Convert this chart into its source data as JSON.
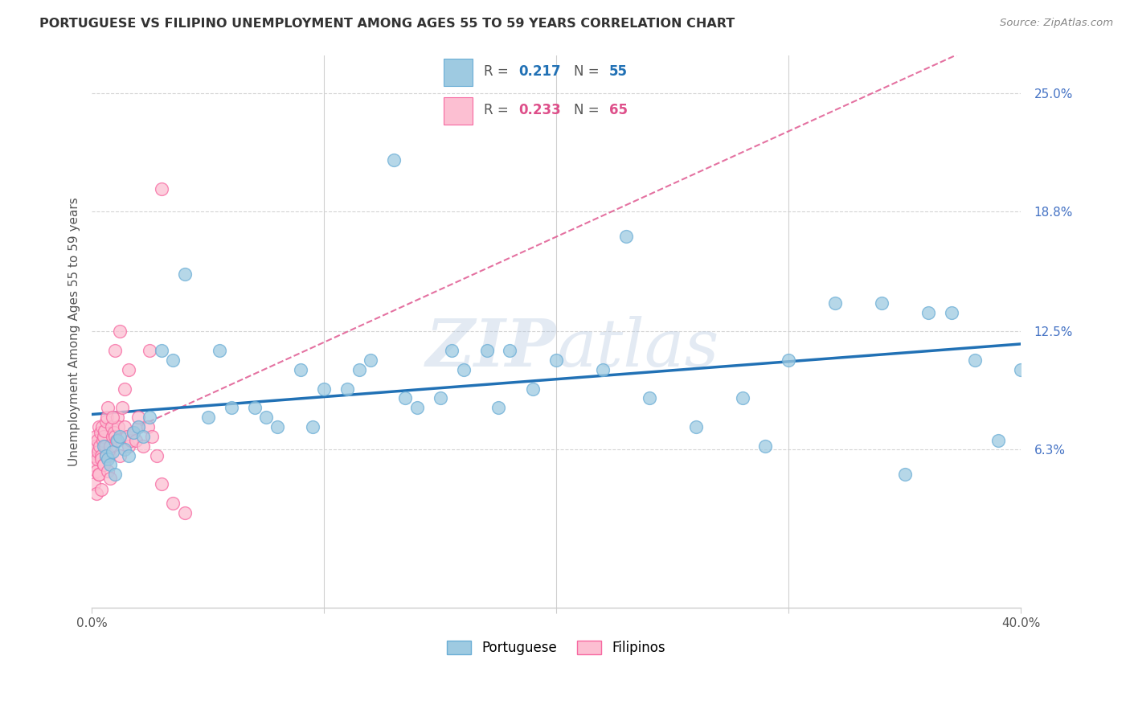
{
  "title": "PORTUGUESE VS FILIPINO UNEMPLOYMENT AMONG AGES 55 TO 59 YEARS CORRELATION CHART",
  "source": "Source: ZipAtlas.com",
  "ylabel": "Unemployment Among Ages 55 to 59 years",
  "ytick_labels": [
    "6.3%",
    "12.5%",
    "18.8%",
    "25.0%"
  ],
  "ytick_values": [
    6.3,
    12.5,
    18.8,
    25.0
  ],
  "xlim": [
    0,
    40
  ],
  "ylim": [
    -2,
    27
  ],
  "portuguese_color": "#9ecae1",
  "filipino_color": "#fcbfd2",
  "portuguese_edge": "#6baed6",
  "filipino_edge": "#f768a1",
  "portuguese_R": 0.217,
  "portuguese_N": 55,
  "filipino_R": 0.233,
  "filipino_N": 65,
  "watermark": "ZIPatlas",
  "port_line_color": "#2171b5",
  "fil_line_color": "#de4f8a",
  "portuguese_x": [
    0.5,
    0.6,
    0.7,
    0.8,
    0.9,
    1.0,
    1.1,
    1.2,
    1.4,
    1.6,
    1.8,
    2.0,
    2.2,
    2.5,
    3.0,
    3.5,
    4.0,
    5.0,
    6.0,
    7.0,
    8.0,
    9.0,
    10.0,
    11.0,
    12.0,
    13.0,
    14.0,
    15.0,
    16.0,
    17.0,
    18.0,
    20.0,
    22.0,
    24.0,
    26.0,
    28.0,
    30.0,
    32.0,
    34.0,
    36.0,
    38.0,
    40.0,
    5.5,
    7.5,
    9.5,
    11.5,
    13.5,
    15.5,
    17.5,
    19.0,
    23.0,
    29.0,
    35.0,
    37.0,
    39.0
  ],
  "portuguese_y": [
    6.5,
    6.0,
    5.8,
    5.5,
    6.2,
    5.0,
    6.8,
    7.0,
    6.3,
    6.0,
    7.2,
    7.5,
    7.0,
    8.0,
    11.5,
    11.0,
    15.5,
    8.0,
    8.5,
    8.5,
    7.5,
    10.5,
    9.5,
    9.5,
    11.0,
    21.5,
    8.5,
    9.0,
    10.5,
    11.5,
    11.5,
    11.0,
    10.5,
    9.0,
    7.5,
    9.0,
    11.0,
    14.0,
    14.0,
    13.5,
    11.0,
    10.5,
    11.5,
    8.0,
    7.5,
    10.5,
    9.0,
    11.5,
    8.5,
    9.5,
    17.5,
    6.5,
    5.0,
    13.5,
    6.8
  ],
  "filipino_x": [
    0.05,
    0.08,
    0.1,
    0.12,
    0.15,
    0.18,
    0.2,
    0.22,
    0.25,
    0.28,
    0.3,
    0.32,
    0.35,
    0.38,
    0.4,
    0.42,
    0.45,
    0.48,
    0.5,
    0.52,
    0.55,
    0.58,
    0.6,
    0.65,
    0.7,
    0.75,
    0.8,
    0.85,
    0.9,
    0.95,
    1.0,
    1.05,
    1.1,
    1.15,
    1.2,
    1.3,
    1.4,
    1.5,
    1.6,
    1.7,
    1.8,
    1.9,
    2.0,
    2.2,
    2.4,
    2.6,
    2.8,
    3.0,
    3.5,
    4.0,
    0.2,
    0.3,
    0.4,
    0.5,
    0.6,
    0.7,
    0.8,
    0.9,
    1.0,
    1.2,
    1.4,
    1.6,
    2.0,
    2.5,
    3.0
  ],
  "filipino_y": [
    5.5,
    6.0,
    4.5,
    6.5,
    7.0,
    6.5,
    5.2,
    6.8,
    5.8,
    6.2,
    7.5,
    5.0,
    6.5,
    7.2,
    6.0,
    5.8,
    7.5,
    6.8,
    5.5,
    7.0,
    7.3,
    6.5,
    7.8,
    8.0,
    8.5,
    6.0,
    6.5,
    7.5,
    7.0,
    7.2,
    7.0,
    6.8,
    8.0,
    7.5,
    6.0,
    8.5,
    7.5,
    7.0,
    6.5,
    6.8,
    7.2,
    6.8,
    7.5,
    6.5,
    7.5,
    7.0,
    6.0,
    4.5,
    3.5,
    3.0,
    4.0,
    5.0,
    4.2,
    5.5,
    6.0,
    5.2,
    4.8,
    8.0,
    11.5,
    12.5,
    9.5,
    10.5,
    8.0,
    11.5,
    20.0
  ]
}
